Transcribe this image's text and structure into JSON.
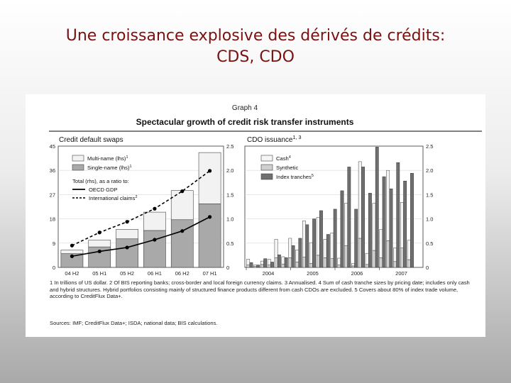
{
  "slide": {
    "title_line1": "Une croissance explosive des dérivés de crédits:",
    "title_line2": "CDS, CDO"
  },
  "figure": {
    "graph_label": "Graph 4",
    "heading": "Spectacular growth of credit risk transfer instruments",
    "notes": "1 In trillions of US dollar.   2 Of BIS reporting banks; cross-border and local foreign currency claims.   3 Annualised.   4 Sum of cash tranche sizes by pricing date; includes only cash and hybrid structures. Hybrid portfolios consisting mainly of structured finance products different from cash CDOs are excluded.   5 Covers about 80% of index trade volume, according to CreditFlux Data+.",
    "sources": "Sources: IMF; CreditFlux Data+; ISDA; national data; BIS calculations."
  },
  "chart_data": [
    {
      "type": "bar",
      "panel_title": "Credit default swaps",
      "categories": [
        "04 H2",
        "05 H1",
        "05 H2",
        "06 H1",
        "06 H2",
        "07 H1"
      ],
      "stacked": true,
      "left_axis": {
        "range": [
          0,
          45
        ],
        "ticks": [
          "0",
          "9",
          "18",
          "27",
          "36",
          "45"
        ]
      },
      "right_axis": {
        "range": [
          0,
          2.5
        ],
        "ticks": [
          "0",
          "0.5",
          "1.0",
          "1.5",
          "2.0",
          "2.5"
        ]
      },
      "series": [
        {
          "name": "Single-name (lhs)",
          "sup": "1",
          "kind": "bar",
          "axis": "left",
          "color": "#a9a9a9",
          "values": [
            5.1,
            7.6,
            10.6,
            13.7,
            17.7,
            23.6
          ]
        },
        {
          "name": "Multi-name (lhs)",
          "sup": "1",
          "kind": "bar",
          "axis": "left",
          "color": "#f2f2f2",
          "values": [
            1.3,
            2.5,
            3.5,
            6.8,
            10.8,
            19.0
          ]
        },
        {
          "name": "OECD GDP",
          "kind": "line",
          "axis": "right",
          "style": "solid",
          "values": [
            0.23,
            0.33,
            0.41,
            0.57,
            0.75,
            1.04
          ]
        },
        {
          "name": "International claims",
          "sup": "2",
          "kind": "line",
          "axis": "right",
          "style": "dashed",
          "values": [
            0.45,
            0.72,
            0.94,
            1.21,
            1.57,
            1.99
          ]
        }
      ],
      "legend_subtitle": "Total (rhs), as a ratio to:",
      "legend_position": "top-left",
      "grid": true
    },
    {
      "type": "bar",
      "panel_title": "CDO issuance",
      "title_sup": "1, 3",
      "x_tick_labels": [
        "2004",
        "2005",
        "2006",
        "2007"
      ],
      "periods_per_year": 12,
      "right_axis": {
        "range": [
          0,
          2.5
        ],
        "ticks": [
          "0",
          "0.5",
          "1.0",
          "1.5",
          "2.0",
          "2.5"
        ]
      },
      "series": [
        {
          "name": "Cash",
          "sup": "4",
          "color": "#f5f5f5",
          "group": "clustered",
          "values": [
            0.12,
            0.03,
            0.07,
            0.12,
            0.38,
            0.15,
            0.4,
            0.25,
            0.75,
            0.43,
            0.78,
            0.38,
            0.53,
            0.14,
            0.87,
            0.05,
            1.58,
            0.23,
            0.97,
            0.58,
            1.45,
            0.28,
            0.94,
            0.4
          ]
        },
        {
          "name": "Synthetic",
          "color": "#cfcfcf",
          "group": "stacked-on-cash",
          "values": [
            0.05,
            0.02,
            0.06,
            0.05,
            0.2,
            0.07,
            0.2,
            0.11,
            0.21,
            0.08,
            0.25,
            0.2,
            0.18,
            0.05,
            0.45,
            0.03,
            0.6,
            0.06,
            0.35,
            0.2,
            0.55,
            0.12,
            0.4,
            0.16
          ]
        },
        {
          "name": "Index tranches",
          "sup": "5",
          "color": "#6f6f6f",
          "group": "clustered",
          "values": [
            0.1,
            0.05,
            0.18,
            0.11,
            0.26,
            0.2,
            0.45,
            0.6,
            0.88,
            1.0,
            1.17,
            0.68,
            1.2,
            1.58,
            2.07,
            1.2,
            2.07,
            1.53,
            2.48,
            1.87,
            1.62,
            2.16,
            1.78,
            1.94
          ]
        }
      ],
      "legend_position": "top-left",
      "grid": true
    }
  ]
}
